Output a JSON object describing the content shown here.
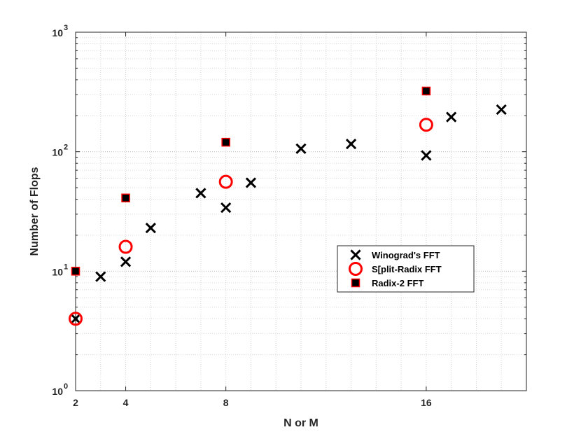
{
  "chart_data": {
    "type": "scatter",
    "title": "",
    "xlabel": "N or M",
    "ylabel": "Number of Flops",
    "x_scale": "linear",
    "y_scale": "log",
    "xlim": [
      2,
      20
    ],
    "ylim": [
      1,
      1000
    ],
    "x_ticks": [
      2,
      4,
      8,
      16
    ],
    "y_ticks": [
      {
        "base": "10",
        "exp": "0"
      },
      {
        "base": "10",
        "exp": "1"
      },
      {
        "base": "10",
        "exp": "2"
      },
      {
        "base": "10",
        "exp": "3"
      }
    ],
    "grid": true,
    "legend_position": "right-center",
    "series": [
      {
        "name": "Winograd's FFT",
        "marker": "x",
        "color": "#000000",
        "x": [
          2,
          3,
          4,
          5,
          7,
          8,
          9,
          11,
          13,
          16,
          17,
          19
        ],
        "y": [
          4,
          9,
          12,
          23,
          45,
          34,
          55,
          106,
          116,
          93,
          195,
          225
        ]
      },
      {
        "name": "S[plit-Radix FFT",
        "marker": "circle",
        "color": "#ff0000",
        "x": [
          2,
          4,
          8,
          16
        ],
        "y": [
          4,
          16,
          56,
          168
        ]
      },
      {
        "name": "Radix-2 FFT",
        "marker": "square",
        "color": "#000000",
        "edge_color": "#ff0000",
        "x": [
          2,
          4,
          8,
          16
        ],
        "y": [
          10,
          41,
          120,
          322
        ]
      }
    ]
  }
}
